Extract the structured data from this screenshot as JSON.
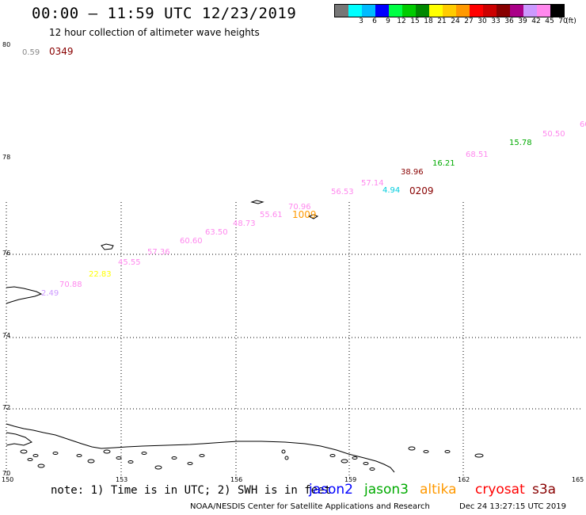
{
  "header": {
    "title": "00:00 – 11:59 UTC 12/23/2019",
    "subtitle": "12 hour collection of altimeter wave heights"
  },
  "legend": {
    "unit": "(ft)",
    "bins": [
      {
        "label": "",
        "color": "#777777"
      },
      {
        "label": "3",
        "color": "#00ffff"
      },
      {
        "label": "6",
        "color": "#00bbff"
      },
      {
        "label": "9",
        "color": "#0000ff"
      },
      {
        "label": "12",
        "color": "#00ff44"
      },
      {
        "label": "15",
        "color": "#00cc00"
      },
      {
        "label": "18",
        "color": "#008800"
      },
      {
        "label": "21",
        "color": "#ffff00"
      },
      {
        "label": "24",
        "color": "#ffcc00"
      },
      {
        "label": "27",
        "color": "#ff9900"
      },
      {
        "label": "30",
        "color": "#ff0000"
      },
      {
        "label": "33",
        "color": "#cc0000"
      },
      {
        "label": "36",
        "color": "#880000"
      },
      {
        "label": "39",
        "color": "#aa0088"
      },
      {
        "label": "42",
        "color": "#cc99ff"
      },
      {
        "label": "45",
        "color": "#ff88ee"
      },
      {
        "label": "70",
        "color": "#000000"
      }
    ]
  },
  "axes": {
    "lat_labels": [
      "80",
      "78",
      "76",
      "74",
      "72",
      "70"
    ],
    "lon_labels": [
      "150",
      "153",
      "156",
      "159",
      "162",
      "165"
    ]
  },
  "track": [
    {
      "text": "0.59",
      "color": "#888888"
    },
    {
      "text": "2.49",
      "color": "#cc99ff"
    },
    {
      "text": "70.88",
      "color": "#ff88ee"
    },
    {
      "text": "22.83",
      "color": "#ffff00"
    },
    {
      "text": "45.55",
      "color": "#ff88ee"
    },
    {
      "text": "57.36",
      "color": "#ff88ee"
    },
    {
      "text": "60.60",
      "color": "#ff88ee"
    },
    {
      "text": "63.50",
      "color": "#ff88ee"
    },
    {
      "text": "48.73",
      "color": "#ff88ee"
    },
    {
      "text": "55.61",
      "color": "#ff88ee"
    },
    {
      "text": "70.96",
      "color": "#ff88ee"
    },
    {
      "text": "56.53",
      "color": "#ff88ee"
    },
    {
      "text": "57.14",
      "color": "#ff88ee"
    },
    {
      "text": "4.94",
      "color": "#00ccdd"
    },
    {
      "text": "38.96",
      "color": "#880000"
    },
    {
      "text": "16.21",
      "color": "#00aa00"
    },
    {
      "text": "68.51",
      "color": "#ff88ee"
    },
    {
      "text": "15.78",
      "color": "#00aa00"
    },
    {
      "text": "50.50",
      "color": "#ff88ee"
    },
    {
      "text": "60",
      "color": "#ff88ee"
    }
  ],
  "time_labels": [
    {
      "text": "0349",
      "color": "#880000"
    },
    {
      "text": "1009",
      "color": "#ff9900"
    },
    {
      "text": "0209",
      "color": "#880000"
    }
  ],
  "footer": {
    "note": "note: 1) Time is in UTC; 2) SWH is in feet",
    "satellites": [
      {
        "name": "jason2",
        "color": "#0000ff"
      },
      {
        "name": "jason3",
        "color": "#00aa00"
      },
      {
        "name": "altika",
        "color": "#ff9900"
      },
      {
        "name": "cryosat",
        "color": "#ff0000"
      },
      {
        "name": "s3a",
        "color": "#880000"
      }
    ],
    "credit": "NOAA/NESDIS Center for Satellite Applications and Research",
    "timestamp": "Dec 24 13:27:15 UTC 2019"
  }
}
